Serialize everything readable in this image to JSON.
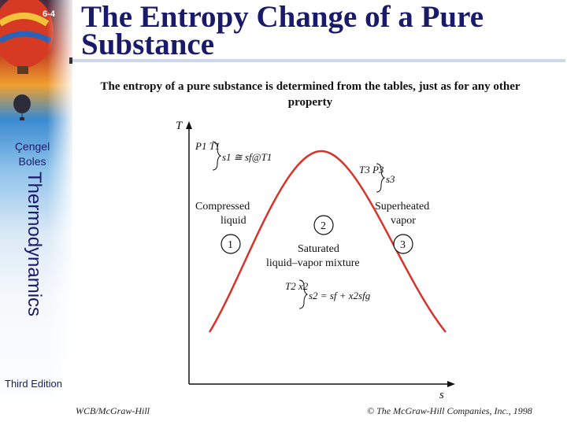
{
  "slide": {
    "number": "6-4",
    "title_line1": "The Entropy Change of a Pure",
    "title_line2": "Substance",
    "subtitle": "The entropy of a pure substance is determined from the tables, just as for any other property"
  },
  "sidebar": {
    "author1": "Çengel",
    "author2": "Boles",
    "course": "Thermodynamics",
    "edition": "Third Edition"
  },
  "diagram": {
    "axis_y": "T",
    "axis_x": "s",
    "state1_props": "P1 T1",
    "state1_relation": "s1 ≅ sf@T1",
    "state3_props": "T3 P3",
    "state3_relation": "s3",
    "state2_props": "T2 x2",
    "state2_relation": "s2 = sf + x2sfg",
    "region_compressed_1": "Compressed",
    "region_compressed_2": "liquid",
    "region_superheated_1": "Superheated",
    "region_superheated_2": "vapor",
    "region_saturated_1": "Saturated",
    "region_saturated_2": "liquid–vapor mixture",
    "marker_1": "1",
    "marker_2": "2",
    "marker_3": "3",
    "dome_color": "#d8332a"
  },
  "footer": {
    "publisher_left": "WCB/McGraw-Hill",
    "copyright": "© The McGraw-Hill Companies, Inc., 1998"
  }
}
